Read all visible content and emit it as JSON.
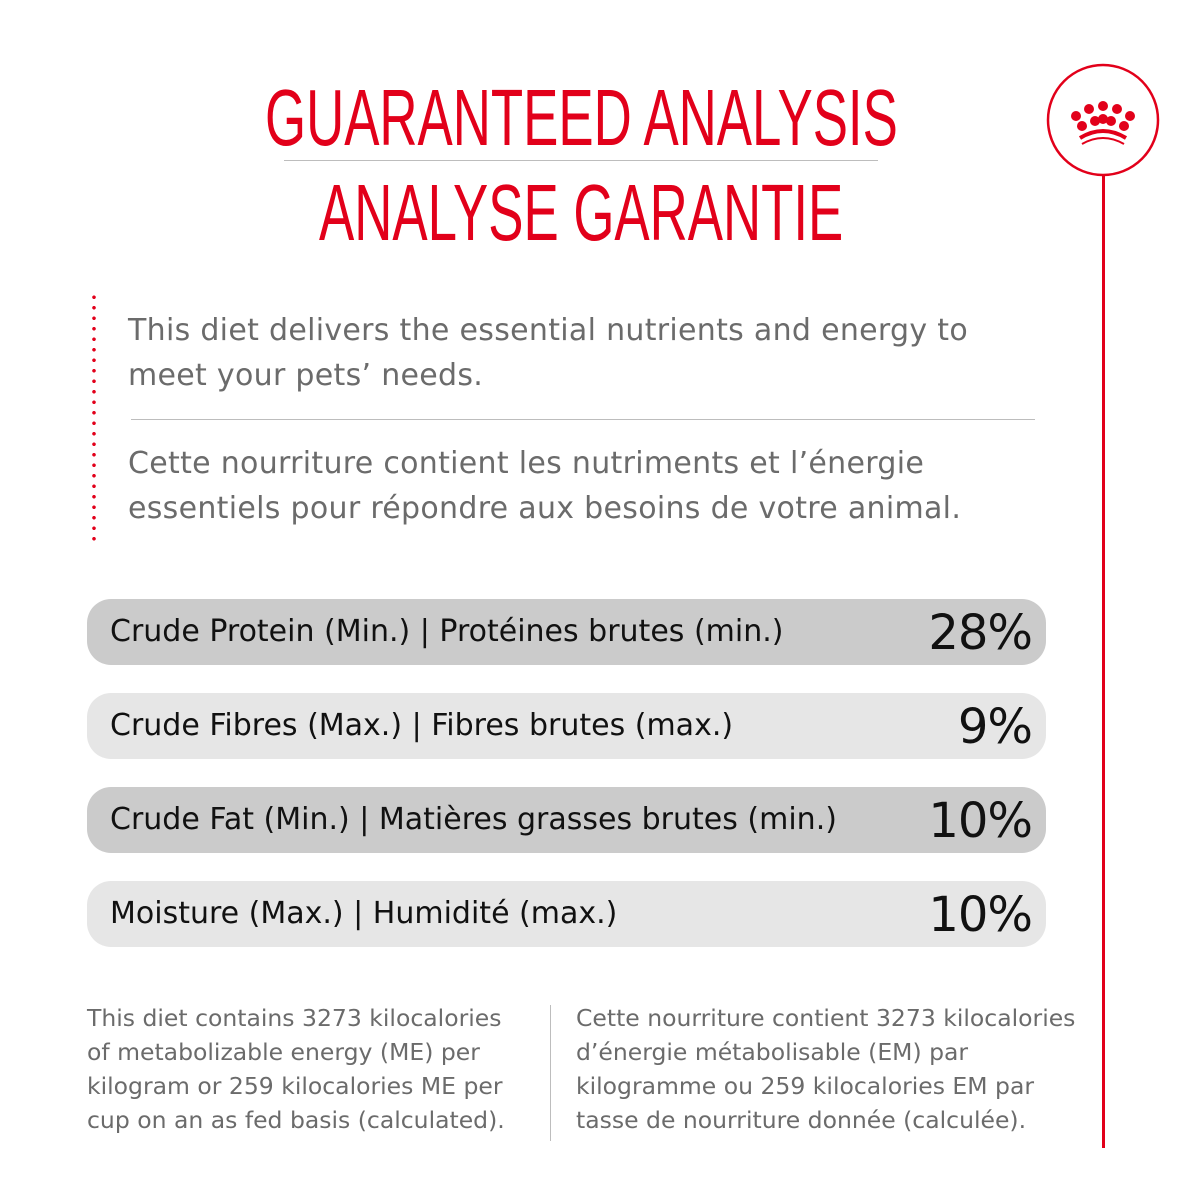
{
  "header": {
    "title_en": "GUARANTEED ANALYSIS",
    "title_fr": "ANALYSE GARANTIE"
  },
  "logo": {
    "icon": "royal-canin-crown-icon",
    "color": "#e2001a"
  },
  "intro": {
    "en": [
      "This diet delivers the essential nutrients and energy to",
      "meet your pets’ needs."
    ],
    "fr": [
      "Cette nourriture contient les nutriments et l’énergie",
      "essentiels pour répondre aux besoins de votre animal."
    ]
  },
  "analysis": [
    {
      "label": "Crude Protein (Min.) | Protéines brutes (min.)",
      "value": "28%"
    },
    {
      "label": "Crude Fibres (Max.) | Fibres brutes (max.)",
      "value": "9%"
    },
    {
      "label": "Crude Fat (Min.) | Matières grasses brutes (min.)",
      "value": "10%"
    },
    {
      "label": "Moisture (Max.) | Humidité (max.)",
      "value": "10%"
    }
  ],
  "footer": {
    "en": [
      "This diet contains 3273 kilocalories",
      "of metabolizable energy (ME) per",
      "kilogram or 259 kilocalories ME per",
      "cup on an as fed basis (calculated)."
    ],
    "fr": [
      "Cette nourriture contient 3273 kilocalories",
      "d’énergie métabolisable (EM) par",
      "kilogramme ou 259 kilocalories EM par",
      "tasse de nourriture donnée (calculée)."
    ]
  },
  "colors": {
    "accent": "#e2001a",
    "row_dark": "#cbcbcb",
    "row_light": "#e6e6e6",
    "text_gray": "#6b6b6b"
  }
}
